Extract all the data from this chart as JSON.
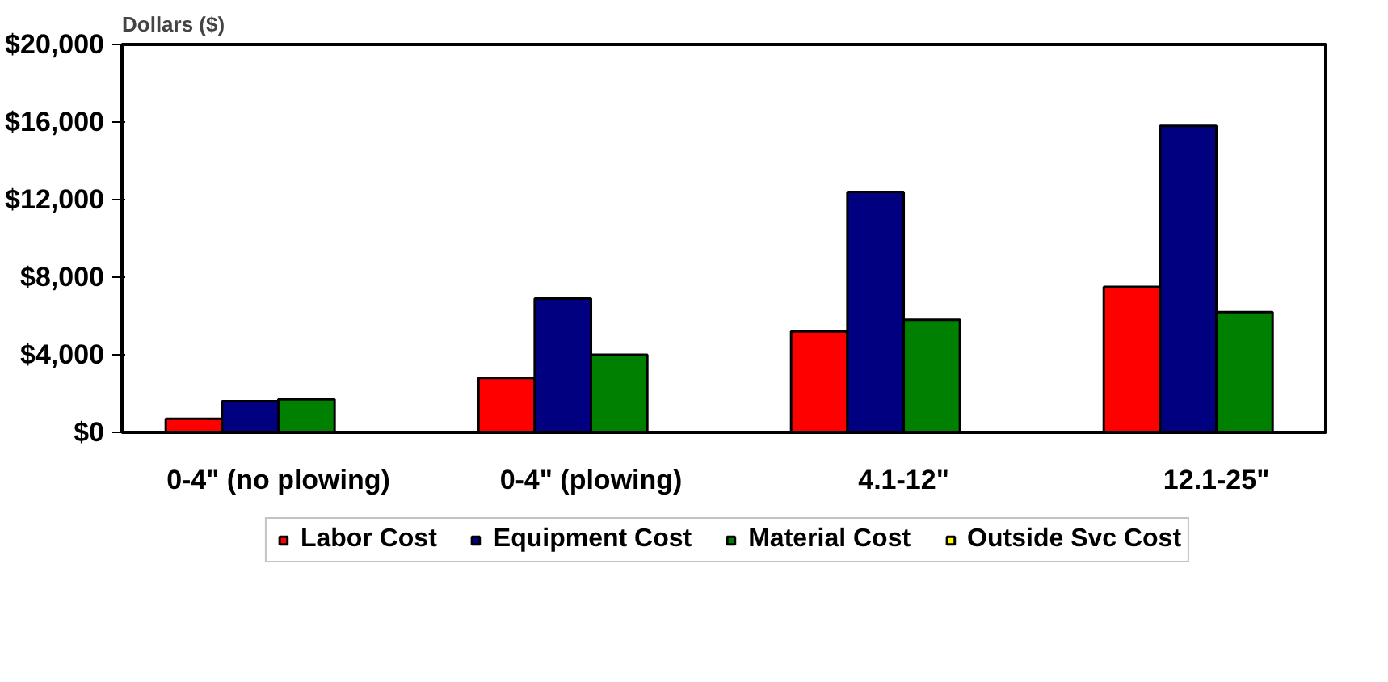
{
  "chart_data": {
    "type": "bar",
    "ylabel": "Dollars ($)",
    "categories": [
      "0-4\" (no plowing)",
      "0-4\" (plowing)",
      "4.1-12\"",
      "12.1-25\""
    ],
    "series": [
      {
        "name": "Labor Cost",
        "color": "#ff0000",
        "values": [
          700,
          2800,
          5200,
          7500
        ]
      },
      {
        "name": "Equipment Cost",
        "color": "#000080",
        "values": [
          1600,
          6900,
          12400,
          15800
        ]
      },
      {
        "name": "Material Cost",
        "color": "#008000",
        "values": [
          1700,
          4000,
          5800,
          6200
        ]
      },
      {
        "name": "Outside Svc Cost",
        "color": "#ffff00",
        "values": [
          null,
          null,
          null,
          null
        ]
      }
    ],
    "ylim": [
      0,
      20000
    ],
    "yticks": [
      {
        "value": 0,
        "label": "$0"
      },
      {
        "value": 4000,
        "label": "$4,000"
      },
      {
        "value": 8000,
        "label": "$8,000"
      },
      {
        "value": 12000,
        "label": "$12,000"
      },
      {
        "value": 16000,
        "label": "$16,000"
      },
      {
        "value": 20000,
        "label": "$20,000"
      }
    ],
    "grid": false,
    "legend": "bottom"
  }
}
